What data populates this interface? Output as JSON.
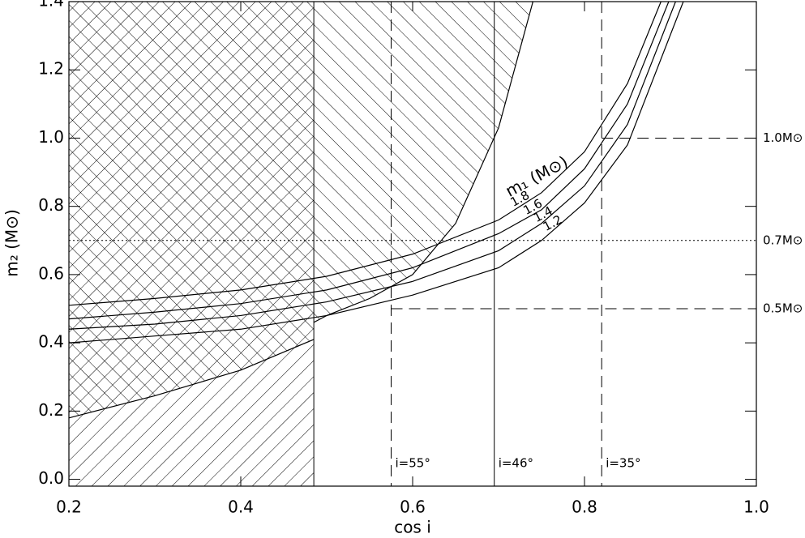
{
  "chart_data": {
    "type": "line",
    "xlabel": "cos i",
    "ylabel": "m₂ (M⊙)",
    "curve_label": "m₁ (M⊙)",
    "xlim": [
      0.2,
      1.0
    ],
    "ylim": [
      -0.02,
      1.4
    ],
    "xticks": [
      0.2,
      0.4,
      0.6,
      0.8,
      {
        "value": 1.0,
        "label": "1.0"
      }
    ],
    "yticks": [
      {
        "value": 0.0,
        "label": "0.0"
      },
      0.2,
      0.4,
      0.6,
      0.8,
      {
        "value": 1.0,
        "label": "1.0"
      },
      1.2,
      1.4
    ],
    "color": "#000000",
    "series": [
      {
        "name": "1.8",
        "x": [
          0.2,
          0.3,
          0.4,
          0.5,
          0.6,
          0.7,
          0.75,
          0.8,
          0.85,
          0.889
        ],
        "values": [
          0.51,
          0.53,
          0.555,
          0.595,
          0.66,
          0.76,
          0.84,
          0.96,
          1.16,
          1.4
        ]
      },
      {
        "name": "1.6",
        "x": [
          0.2,
          0.3,
          0.4,
          0.5,
          0.6,
          0.7,
          0.75,
          0.8,
          0.85,
          0.898
        ],
        "values": [
          0.47,
          0.49,
          0.515,
          0.555,
          0.62,
          0.72,
          0.79,
          0.91,
          1.1,
          1.4
        ]
      },
      {
        "name": "1.4",
        "x": [
          0.2,
          0.3,
          0.4,
          0.5,
          0.6,
          0.7,
          0.75,
          0.8,
          0.85,
          0.906
        ],
        "values": [
          0.44,
          0.455,
          0.48,
          0.52,
          0.58,
          0.67,
          0.75,
          0.86,
          1.04,
          1.4
        ]
      },
      {
        "name": "1.2",
        "x": [
          0.2,
          0.3,
          0.4,
          0.5,
          0.6,
          0.7,
          0.75,
          0.8,
          0.85,
          0.915
        ],
        "values": [
          0.4,
          0.42,
          0.44,
          0.48,
          0.54,
          0.62,
          0.7,
          0.81,
          0.98,
          1.4
        ]
      }
    ],
    "lower_bound": {
      "x": [
        0.2,
        0.3,
        0.4,
        0.485
      ],
      "values": [
        0.18,
        0.245,
        0.32,
        0.41
      ]
    },
    "upper_bound": {
      "x": [
        0.485,
        0.5,
        0.55,
        0.6,
        0.65,
        0.7,
        0.74
      ],
      "values": [
        0.46,
        0.48,
        0.53,
        0.6,
        0.75,
        1.03,
        1.4
      ]
    },
    "vlines": [
      {
        "x": 0.485,
        "style": "solid"
      },
      {
        "x": 0.575,
        "style": "dashed",
        "label": "i=55°"
      },
      {
        "x": 0.695,
        "style": "solid",
        "label": "i=46°"
      },
      {
        "x": 0.82,
        "style": "dashed",
        "label": "i=35°"
      }
    ],
    "hlines": [
      {
        "y": 1.0,
        "xstart": 0.82,
        "style": "dashed",
        "label": "1.0M⊙"
      },
      {
        "y": 0.7,
        "xstart": 0.2,
        "style": "dotted",
        "label": "0.7M⊙"
      },
      {
        "y": 0.5,
        "xstart": 0.575,
        "style": "dashed",
        "label": "0.5M⊙"
      }
    ]
  }
}
